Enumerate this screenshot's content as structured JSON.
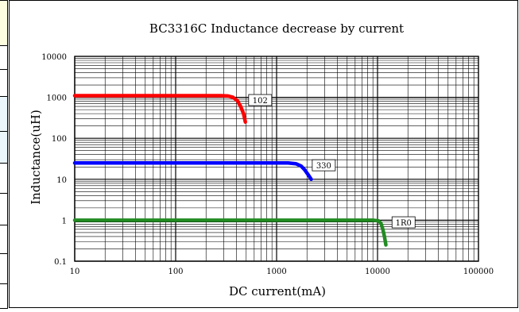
{
  "chart_data": {
    "type": "line",
    "title": "BC3316C Inductance decrease by current",
    "xlabel": "DC current(mA)",
    "ylabel": "Inductance(uH)",
    "x_scale": "log",
    "y_scale": "log",
    "xlim": [
      10,
      100000
    ],
    "ylim": [
      0.1,
      10000
    ],
    "x_ticks": [
      "10",
      "100",
      "1000",
      "10000",
      "100000"
    ],
    "y_ticks": [
      "10000",
      "1000",
      "100",
      "10",
      "1",
      "0.1"
    ],
    "grid": true,
    "series": [
      {
        "name": "102",
        "color": "#ff0000",
        "points": [
          [
            10,
            1100
          ],
          [
            100,
            1100
          ],
          [
            200,
            1100
          ],
          [
            280,
            1100
          ],
          [
            330,
            1080
          ],
          [
            370,
            1000
          ],
          [
            410,
            820
          ],
          [
            440,
            600
          ],
          [
            470,
            400
          ],
          [
            490,
            250
          ]
        ]
      },
      {
        "name": "330",
        "color": "#0000ff",
        "points": [
          [
            10,
            25
          ],
          [
            100,
            25
          ],
          [
            500,
            25
          ],
          [
            1000,
            25
          ],
          [
            1300,
            25
          ],
          [
            1550,
            24
          ],
          [
            1750,
            21
          ],
          [
            1900,
            17
          ],
          [
            2050,
            13
          ],
          [
            2200,
            10
          ]
        ]
      },
      {
        "name": "1R0",
        "color": "#228b22",
        "points": [
          [
            10,
            1
          ],
          [
            100,
            1
          ],
          [
            1000,
            1
          ],
          [
            5000,
            1
          ],
          [
            9000,
            1
          ],
          [
            10200,
            0.97
          ],
          [
            10800,
            0.85
          ],
          [
            11300,
            0.6
          ],
          [
            11700,
            0.4
          ],
          [
            12100,
            0.25
          ]
        ]
      }
    ]
  }
}
